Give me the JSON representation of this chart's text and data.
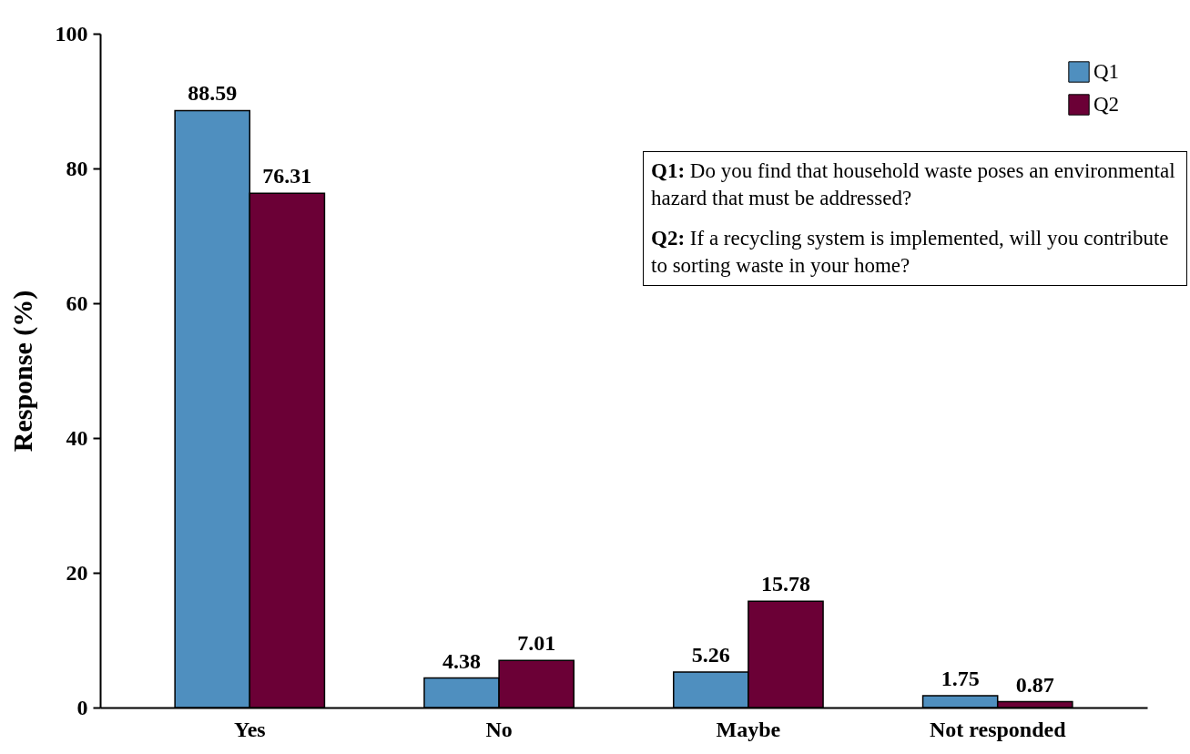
{
  "chart_data": {
    "type": "bar",
    "ylabel": "Response (%)",
    "categories": [
      "Yes",
      "No",
      "Maybe",
      "Not responded"
    ],
    "series": [
      {
        "name": "Q1",
        "color": "#4f8fbf",
        "values": [
          88.59,
          4.38,
          5.26,
          1.75
        ]
      },
      {
        "name": "Q2",
        "color": "#6b0036",
        "values": [
          76.31,
          7.01,
          15.78,
          0.87
        ]
      }
    ],
    "ylim": [
      0,
      100
    ],
    "yticks": [
      0,
      20,
      40,
      60,
      80,
      100
    ],
    "data_labels": true,
    "legend": "top right",
    "grid": false,
    "annotations": [
      "Q1: Do you find that household waste poses an environmental hazard that must be addressed?",
      "Q2: If a recycling system is implemented, will you contribute to sorting waste in your home?"
    ]
  }
}
